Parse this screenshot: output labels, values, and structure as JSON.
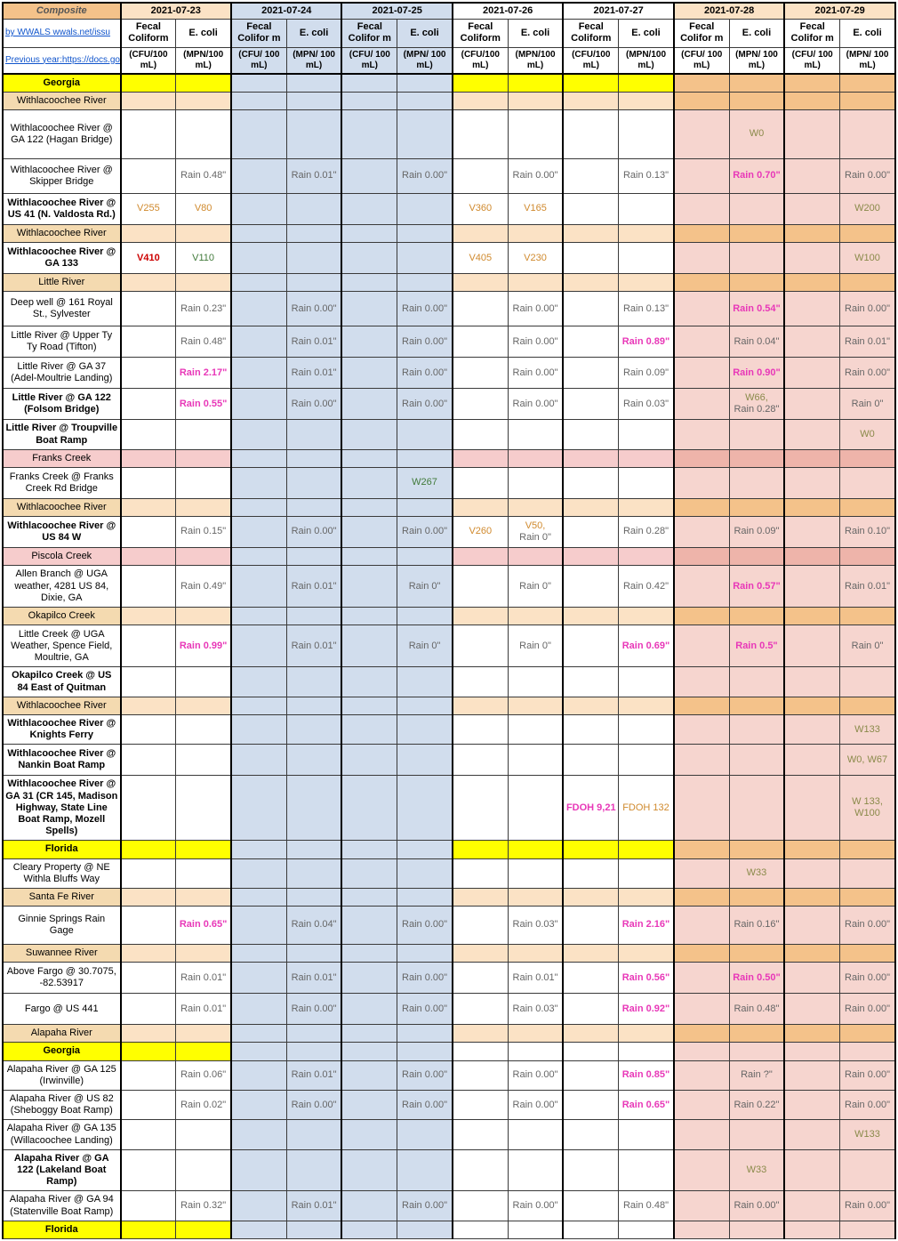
{
  "header": {
    "title": "Composite",
    "byline": "by WWALS wwals.net/issu",
    "prev_year": "Previous year:https://docs.go",
    "dates": [
      "2021-07-23",
      "2021-07-24",
      "2021-07-25",
      "2021-07-26",
      "2021-07-27",
      "2021-07-28",
      "2021-07-29"
    ],
    "sub": [
      "Fecal Coliform",
      "E. coli",
      "Fecal Colifor m",
      "E. coli",
      "Fecal Colifor m",
      "E. coli",
      "Fecal Coliform",
      "E. coli",
      "Fecal Coliform",
      "E. coli",
      "Fecal Colifor m",
      "E. coli",
      "Fecal Colifor m",
      "E. coli"
    ],
    "units_a": "(CFU/100 mL)",
    "units_b": "(MPN/100 mL)",
    "units_c": "(CFU/ 100 mL)",
    "units_d": "(MPN/ 100 mL)"
  },
  "sections": {
    "georgia": "Georgia",
    "florida": "Florida",
    "withla": "Withlacoochee River",
    "little": "Little River",
    "franks": "Franks Creek",
    "piscola": "Piscola Creek",
    "okapilco": "Okapilco Creek",
    "santafe": "Santa Fe River",
    "suwannee": "Suwannee River",
    "alapaha": "Alapaha River"
  },
  "rows": {
    "hagan": {
      "label": "Withlacoochee River @ GA 122 (Hagan Bridge)",
      "d28e": "W0"
    },
    "skipper": {
      "label": "Withlacoochee River @ Skipper Bridge",
      "d23e": "Rain 0.48\"",
      "d24e": "Rain 0.01\"",
      "d25e": "Rain 0.00\"",
      "d26e": "Rain 0.00\"",
      "d27e": "Rain 0.13\"",
      "d28e": "Rain 0.70\"",
      "d29e": "Rain 0.00\""
    },
    "us41": {
      "label": "Withlacoochee River @ US 41 (N. Valdosta Rd.)",
      "d23f": "V255",
      "d23e": "V80",
      "d26f": "V360",
      "d26e": "V165",
      "d29e": "W200"
    },
    "ga133": {
      "label": "Withlacoochee River @ GA 133",
      "d23f": "V410",
      "d23e": "V110",
      "d26f": "V405",
      "d26e": "V230",
      "d29e": "W100"
    },
    "deepwell": {
      "label": "Deep well @ 161 Royal St., Sylvester",
      "d23e": "Rain 0.23\"",
      "d24e": "Rain 0.00\"",
      "d25e": "Rain 0.00\"",
      "d26e": "Rain 0.00\"",
      "d27e": "Rain 0.13\"",
      "d28e": "Rain 0.54\"",
      "d29e": "Rain 0.00\""
    },
    "tyty": {
      "label": "Little River @ Upper Ty Ty Road (Tifton)",
      "d23e": "Rain 0.48\"",
      "d24e": "Rain 0.01\"",
      "d25e": "Rain 0.00\"",
      "d26e": "Rain 0.00\"",
      "d27e": "Rain 0.89\"",
      "d28e": "Rain 0.04\"",
      "d29e": "Rain 0.01\""
    },
    "ga37": {
      "label": "Little River @ GA 37 (Adel-Moultrie Landing)",
      "d23e": "Rain 2.17\"",
      "d24e": "Rain 0.01\"",
      "d25e": "Rain 0.00\"",
      "d26e": "Rain 0.00\"",
      "d27e": "Rain 0.09\"",
      "d28e": "Rain 0.90\"",
      "d29e": "Rain 0.00\""
    },
    "folsom": {
      "label": "Little River @ GA 122 (Folsom Bridge)",
      "d23e": "Rain 0.55\"",
      "d24e": "Rain 0.00\"",
      "d25e": "Rain 0.00\"",
      "d26e": "Rain 0.00\"",
      "d27e": "Rain 0.03\"",
      "d28e": "W66, Rain 0.28\"",
      "d29e": "Rain 0\""
    },
    "troup": {
      "label": "Little River @ Troupville Boat Ramp",
      "d29e": "W0"
    },
    "franksrd": {
      "label": "Franks Creek @ Franks Creek Rd Bridge",
      "d25e": "W267"
    },
    "us84w": {
      "label": "Withlacoochee River @ US 84 W",
      "d23e": "Rain 0.15\"",
      "d24e": "Rain 0.00\"",
      "d25e": "Rain 0.00\"",
      "d26f": "V260",
      "d26e": "V50, Rain 0\"",
      "d27e": "Rain 0.28\"",
      "d28e": "Rain 0.09\"",
      "d29e": "Rain 0.10\""
    },
    "allen": {
      "label": "Allen  Branch @ UGA weather, 4281 US 84, Dixie, GA",
      "d23e": "Rain 0.49\"",
      "d24e": "Rain 0.01\"",
      "d25e": "Rain 0\"",
      "d26e": "Rain 0\"",
      "d27e": "Rain 0.42\"",
      "d28e": "Rain 0.57\"",
      "d29e": "Rain 0.01\""
    },
    "spence": {
      "label": "Little Creek @ UGA Weather, Spence Field, Moultrie, GA",
      "d23e": "Rain 0.99\"",
      "d24e": "Rain 0.01\"",
      "d25e": "Rain 0\"",
      "d26e": "Rain 0\"",
      "d27e": "Rain 0.69\"",
      "d28e": "Rain 0.5\"",
      "d29e": "Rain 0\""
    },
    "quitman": {
      "label": "Okapilco Creek @ US 84 East of Quitman"
    },
    "knights": {
      "label": "Withlacoochee River @ Knights Ferry",
      "d29e": "W133"
    },
    "nankin": {
      "label": "Withlacoochee River @ Nankin Boat Ramp",
      "d29e": "W0, W67"
    },
    "ga31": {
      "label": "Withlacoochee River @ GA 31 (CR 145, Madison Highway, State Line Boat Ramp, Mozell Spells)",
      "d27f": "FDOH 9,21",
      "d27e": "FDOH 132",
      "d29e": "W 133, W100"
    },
    "cleary": {
      "label": "Cleary Property @ NE Withla Bluffs Way",
      "d28e": "W33"
    },
    "ginnie": {
      "label": "Ginnie Springs Rain Gage",
      "d23e": "Rain 0.65\"",
      "d24e": "Rain 0.04\"",
      "d25e": "Rain 0.00\"",
      "d26e": "Rain 0.03\"",
      "d27e": "Rain 2.16\"",
      "d28e": "Rain 0.16\"",
      "d29e": "Rain 0.00\""
    },
    "fargo1": {
      "label": "Above Fargo @ 30.7075, -82.53917",
      "d23e": "Rain 0.01\"",
      "d24e": "Rain 0.01\"",
      "d25e": "Rain 0.00\"",
      "d26e": "Rain 0.01\"",
      "d27e": "Rain 0.56\"",
      "d28e": "Rain 0.50\"",
      "d29e": "Rain 0.00\""
    },
    "fargo2": {
      "label": "Fargo @ US 441",
      "d23e": "Rain 0.01\"",
      "d24e": "Rain 0.00\"",
      "d25e": "Rain 0.00\"",
      "d26e": "Rain 0.03\"",
      "d27e": "Rain 0.92\"",
      "d28e": "Rain 0.48\"",
      "d29e": "Rain 0.00\""
    },
    "ga125": {
      "label": "Alapaha River @ GA 125 (Irwinville)",
      "d23e": "Rain 0.06\"",
      "d24e": "Rain 0.01\"",
      "d25e": "Rain 0.00\"",
      "d26e": "Rain 0.00\"",
      "d27e": "Rain 0.85\"",
      "d28e": "Rain ?\"",
      "d29e": "Rain 0.00\""
    },
    "us82": {
      "label": "Alapaha River @ US 82 (Sheboggy Boat Ramp)",
      "d23e": "Rain 0.02\"",
      "d24e": "Rain 0.00\"",
      "d25e": "Rain 0.00\"",
      "d26e": "Rain 0.00\"",
      "d27e": "Rain 0.65\"",
      "d28e": "Rain 0.22\"",
      "d29e": "Rain 0.00\""
    },
    "ga135": {
      "label": "Alapaha River @ GA 135 (Willacoochee Landing)",
      "d29e": "W133"
    },
    "lakeland": {
      "label": "Alapaha River @ GA 122 (Lakeland Boat Ramp)",
      "d28e": "W33"
    },
    "ga94": {
      "label": "Alapaha River @ GA 94 (Statenville Boat Ramp)",
      "d23e": "Rain 0.32\"",
      "d24e": "Rain 0.01\"",
      "d25e": "Rain 0.00\"",
      "d26e": "Rain 0.00\"",
      "d27e": "Rain 0.48\"",
      "d28e": "Rain 0.00\"",
      "d29e": "Rain 0.00\""
    }
  }
}
